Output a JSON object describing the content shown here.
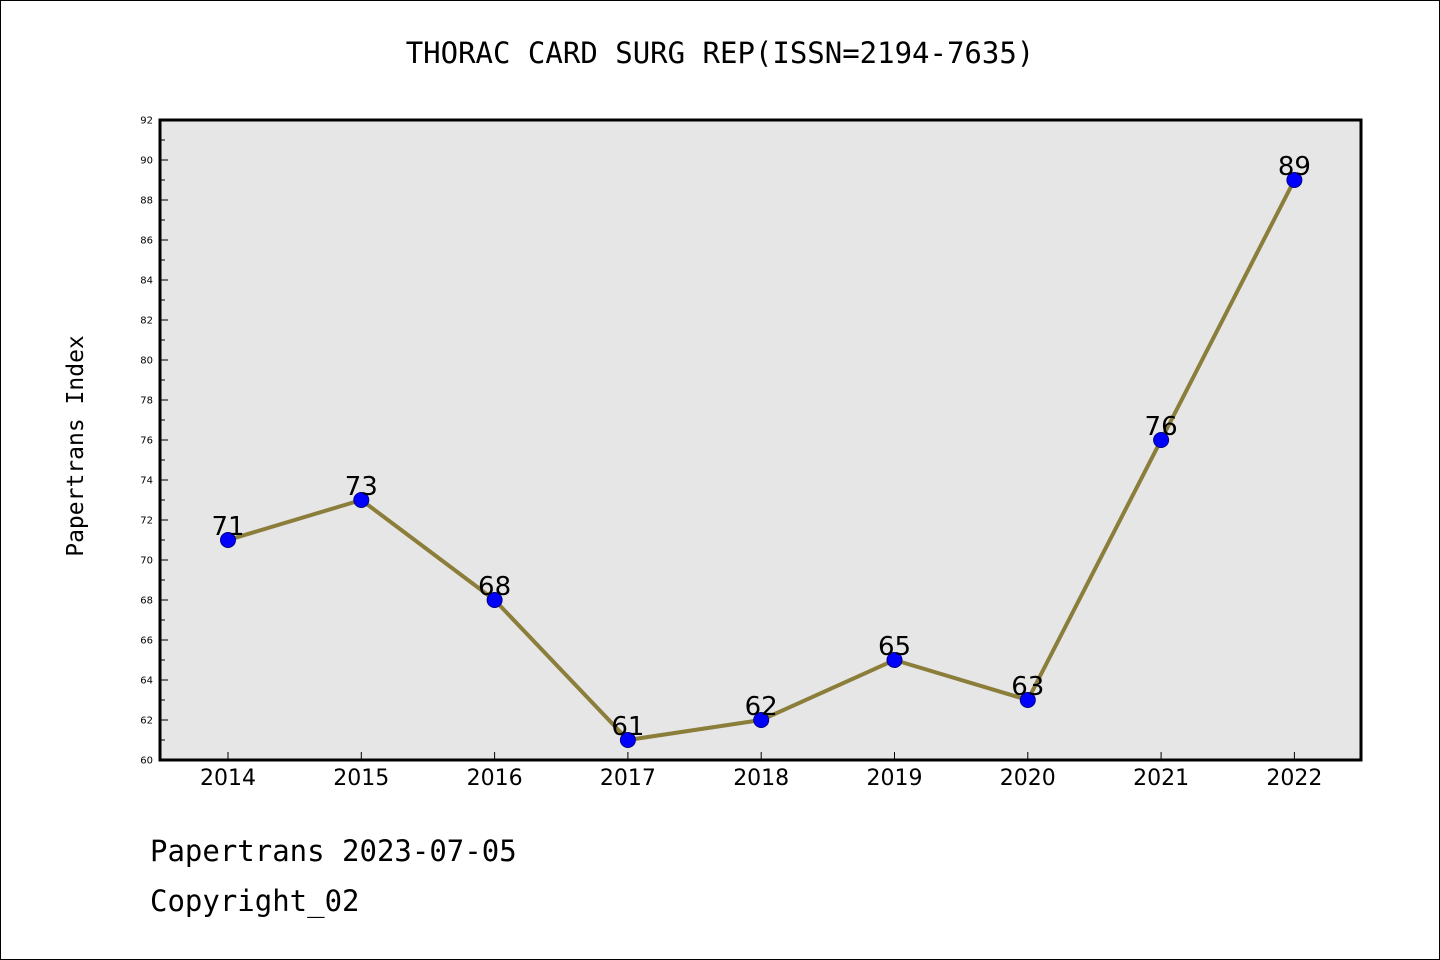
{
  "chart_data": {
    "type": "line",
    "title": "THORAC CARD SURG REP(ISSN=2194-7635)",
    "xlabel": "",
    "ylabel": "Papertrans Index",
    "categories": [
      "2014",
      "2015",
      "2016",
      "2017",
      "2018",
      "2019",
      "2020",
      "2021",
      "2022"
    ],
    "series": [
      {
        "values": [
          71,
          73,
          68,
          61,
          62,
          65,
          63,
          76,
          89
        ]
      }
    ],
    "ylim": [
      60,
      92
    ],
    "yticks": [
      "60",
      "62",
      "64",
      "66",
      "68",
      "70",
      "72",
      "74",
      "76",
      "78",
      "80",
      "82",
      "84",
      "86",
      "88",
      "90",
      "92"
    ],
    "grid": false,
    "legend": "none",
    "colors": {
      "line": "#8B7D3A",
      "marker": "#0000FF",
      "marker_edge": "#000080",
      "plot_bg": "#E6E6E6"
    }
  },
  "footer": {
    "date_text": "Papertrans 2023-07-05",
    "copyright_text": "Copyright_02"
  }
}
